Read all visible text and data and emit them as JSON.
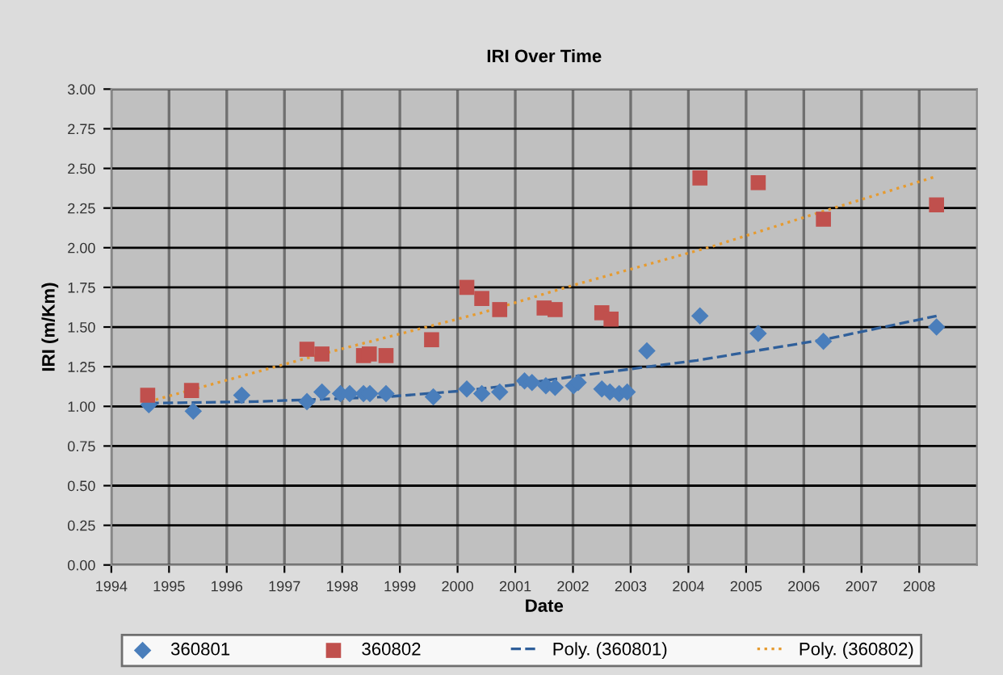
{
  "chart_data": {
    "type": "scatter",
    "title": "IRI Over Time",
    "xlabel": "Date",
    "ylabel": "IRI (m/Km)",
    "xlim": [
      1994,
      2009
    ],
    "xticks": [
      1994,
      1995,
      1996,
      1997,
      1998,
      1999,
      2000,
      2001,
      2002,
      2003,
      2004,
      2005,
      2006,
      2007,
      2008
    ],
    "ylim": [
      0,
      3
    ],
    "yticks": [
      {
        "value": 0,
        "label": "0.00"
      },
      {
        "value": 0.25,
        "label": "0.25"
      },
      {
        "value": 0.5,
        "label": "0.50"
      },
      {
        "value": 0.75,
        "label": "0.75"
      },
      {
        "value": 1,
        "label": "1.00"
      },
      {
        "value": 1.25,
        "label": "1.25"
      },
      {
        "value": 1.5,
        "label": "1.50"
      },
      {
        "value": 1.75,
        "label": "1.75"
      },
      {
        "value": 2,
        "label": "2.00"
      },
      {
        "value": 2.25,
        "label": "2.25"
      },
      {
        "value": 2.5,
        "label": "2.50"
      },
      {
        "value": 2.75,
        "label": "2.75"
      },
      {
        "value": 3,
        "label": "3.00"
      }
    ],
    "grid": true,
    "legend": "bottom",
    "series": [
      {
        "name": "360801",
        "marker": "diamond",
        "color": "#4a7ebb",
        "x": [
          1994.65,
          1995.42,
          1996.26,
          1997.39,
          1997.65,
          1997.97,
          1998.13,
          1998.37,
          1998.48,
          1998.76,
          1999.58,
          2000.16,
          2000.42,
          2000.73,
          2001.16,
          2001.29,
          2001.53,
          2001.69,
          2002.01,
          2002.09,
          2002.5,
          2002.64,
          2002.8,
          2002.94,
          2003.28,
          2004.2,
          2005.21,
          2006.34,
          2008.3
        ],
        "values": [
          1.01,
          0.97,
          1.07,
          1.03,
          1.09,
          1.08,
          1.08,
          1.08,
          1.08,
          1.08,
          1.06,
          1.11,
          1.08,
          1.09,
          1.16,
          1.15,
          1.13,
          1.12,
          1.13,
          1.15,
          1.11,
          1.09,
          1.08,
          1.09,
          1.35,
          1.57,
          1.46,
          1.41,
          1.5
        ]
      },
      {
        "name": "360802",
        "marker": "square",
        "color": "#c0504d",
        "x": [
          1994.63,
          1995.39,
          1997.39,
          1997.65,
          1998.37,
          1998.47,
          1998.76,
          1999.55,
          2000.16,
          2000.42,
          2000.73,
          2001.5,
          2001.69,
          2002.5,
          2002.66,
          2004.2,
          2005.21,
          2006.34,
          2008.3
        ],
        "values": [
          1.07,
          1.1,
          1.36,
          1.33,
          1.32,
          1.33,
          1.32,
          1.42,
          1.75,
          1.68,
          1.61,
          1.62,
          1.61,
          1.59,
          1.55,
          2.44,
          2.41,
          2.18,
          2.27
        ]
      },
      {
        "name": "Poly. (360801)",
        "type": "line",
        "line_style": "dashed",
        "marker": "none",
        "color": "#2f5f9a",
        "x": [
          1994.65,
          1996.5,
          1998.76,
          2000.16,
          2001.08,
          2002.05,
          2004.15,
          2006.34,
          2008.3
        ],
        "values": [
          1.02,
          1.03,
          1.06,
          1.1,
          1.14,
          1.19,
          1.29,
          1.42,
          1.57
        ]
      },
      {
        "name": "Poly. (360802)",
        "type": "line",
        "line_style": "dotted",
        "marker": "none",
        "color": "#e69b30",
        "x": [
          1994.65,
          1997.65,
          2000.42,
          2001.97,
          2004.43,
          2006.34,
          2008.3
        ],
        "values": [
          1.03,
          1.33,
          1.59,
          1.76,
          2.01,
          2.23,
          2.45
        ]
      }
    ]
  }
}
